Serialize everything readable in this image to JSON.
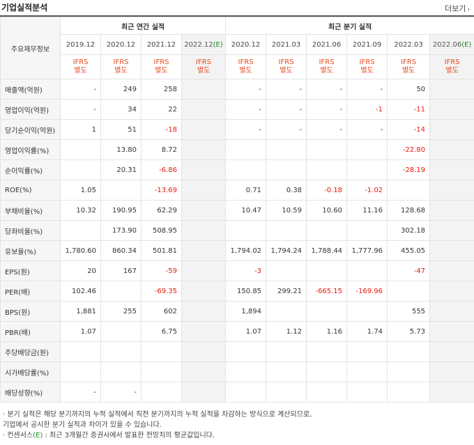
{
  "header": {
    "title": "기업실적분석",
    "more_label": "더보기"
  },
  "table": {
    "corner_label": "주요재무정보",
    "groups": [
      "최근 연간 실적",
      "최근 분기 실적"
    ],
    "periods": [
      "2019.12",
      "2020.12",
      "2021.12",
      "2022.12",
      "2020.12",
      "2021.03",
      "2021.06",
      "2021.09",
      "2022.03",
      "2022.06"
    ],
    "estimate_mark": "(E)",
    "ifrs_line1": "IFRS",
    "ifrs_line2": "별도",
    "rows": [
      {
        "label": "매출액(억원)",
        "values": [
          "-",
          "249",
          "258",
          "",
          "-",
          "-",
          "-",
          "-",
          "50",
          ""
        ]
      },
      {
        "label": "영업이익(억원)",
        "values": [
          "-",
          "34",
          "22",
          "",
          "-",
          "-",
          "-",
          "-1",
          "-11",
          ""
        ]
      },
      {
        "label": "당기순이익(억원)",
        "values": [
          "1",
          "51",
          "-18",
          "",
          "-",
          "-",
          "-",
          "-",
          "-14",
          ""
        ]
      },
      {
        "label": "영업이익률(%)",
        "values": [
          "",
          "13.80",
          "8.72",
          "",
          "",
          "",
          "",
          "",
          "-22.80",
          ""
        ]
      },
      {
        "label": "순이익률(%)",
        "values": [
          "",
          "20.31",
          "-6.86",
          "",
          "",
          "",
          "",
          "",
          "-28.19",
          ""
        ]
      },
      {
        "label": "ROE(%)",
        "values": [
          "1.05",
          "",
          "-13.69",
          "",
          "0.71",
          "0.38",
          "-0.18",
          "-1.02",
          "",
          ""
        ]
      },
      {
        "label": "부채비율(%)",
        "values": [
          "10.32",
          "190.95",
          "62.29",
          "",
          "10.47",
          "10.59",
          "10.60",
          "11.16",
          "128.68",
          ""
        ]
      },
      {
        "label": "당좌비율(%)",
        "values": [
          "",
          "173.90",
          "508.95",
          "",
          "",
          "",
          "",
          "",
          "302.18",
          ""
        ]
      },
      {
        "label": "유보율(%)",
        "values": [
          "1,780.60",
          "860.34",
          "501.81",
          "",
          "1,794.02",
          "1,794.24",
          "1,788.44",
          "1,777.96",
          "455.05",
          ""
        ]
      },
      {
        "label": "EPS(원)",
        "values": [
          "20",
          "167",
          "-59",
          "",
          "-3",
          "",
          "",
          "",
          "-47",
          ""
        ]
      },
      {
        "label": "PER(배)",
        "values": [
          "102.46",
          "",
          "-69.35",
          "",
          "150.85",
          "299.21",
          "-665.15",
          "-169.96",
          "",
          ""
        ]
      },
      {
        "label": "BPS(원)",
        "values": [
          "1,881",
          "255",
          "602",
          "",
          "1,894",
          "",
          "",
          "",
          "555",
          ""
        ]
      },
      {
        "label": "PBR(배)",
        "values": [
          "1.07",
          "",
          "6.75",
          "",
          "1.07",
          "1.12",
          "1.16",
          "1.74",
          "5.73",
          ""
        ]
      },
      {
        "label": "주당배당금(원)",
        "values": [
          "",
          "",
          "",
          "",
          "",
          "",
          "",
          "",
          "",
          ""
        ]
      },
      {
        "label": "시가배당률(%)",
        "values": [
          "",
          "",
          "",
          "",
          "",
          "",
          "",
          "",
          "",
          ""
        ]
      },
      {
        "label": "배당성향(%)",
        "values": [
          "-",
          "-",
          "",
          "",
          "",
          "",
          "",
          "",
          "",
          ""
        ]
      }
    ]
  },
  "notes": {
    "line1": "· 분기 실적은 해당 분기까지의 누적 실적에서 직전 분기까지의 누적 실적을 차감하는 방식으로 계산되므로,",
    "line2": "   기업에서 공시한 분기 실적과 차이가 있을 수 있습니다.",
    "line3_prefix": "· 컨센서스",
    "line3_mark": "(E)",
    "line3_suffix": " : 최근 3개월간 증권사에서 발표한 전망치의 평균값입니다."
  },
  "colors": {
    "negative": "#e8180c",
    "ifrs": "#e8491d",
    "estimate": "#1a8a1a",
    "estimate_bg": "#f3f3f3"
  }
}
